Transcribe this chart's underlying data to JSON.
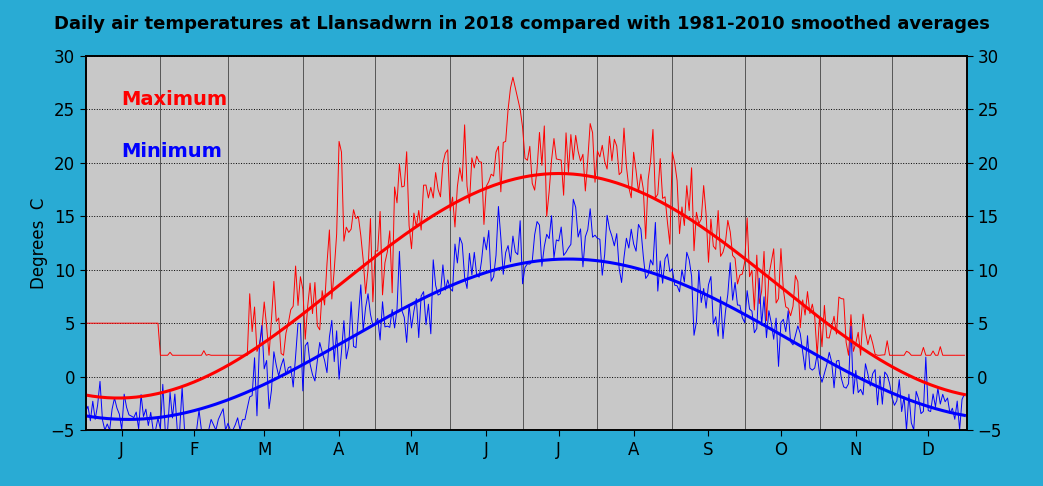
{
  "title": "Daily air temperatures at Llansadwrn in 2018 compared with 1981-2010 smoothed averages",
  "ylabel": "Degrees  C",
  "bg_color": "#29ABD4",
  "plot_bg_color": "#C8C8C8",
  "ylim": [
    -5,
    30
  ],
  "yticks": [
    -5,
    0,
    5,
    10,
    15,
    20,
    25,
    30
  ],
  "months": [
    "J",
    "F",
    "M",
    "A",
    "M",
    "J",
    "J",
    "A",
    "S",
    "O",
    "N",
    "D"
  ],
  "title_fontsize": 13,
  "label_fontsize": 12,
  "tick_fontsize": 12,
  "avg_max_jan": 8.5,
  "avg_max_amp": 10.5,
  "avg_max_peak_day": 196,
  "avg_min_jan": 3.5,
  "avg_min_amp": 7.5,
  "avg_min_peak_day": 200
}
